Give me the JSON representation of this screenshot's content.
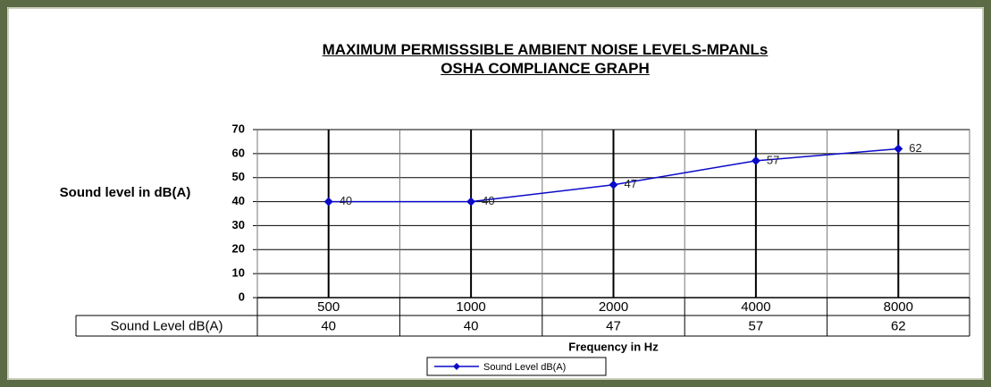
{
  "chart_data": {
    "type": "line",
    "title": "MAXIMUM PERMISSSIBLE AMBIENT NOISE LEVELS-MPANLs",
    "subtitle": "OSHA COMPLIANCE GRAPH",
    "x_label": "Frequency in Hz",
    "y_label": "Sound level in dB(A)",
    "categories": [
      "500",
      "1000",
      "2000",
      "4000",
      "8000"
    ],
    "series": [
      {
        "name": "Sound Level dB(A)",
        "color": "#0a0ac8",
        "values": [
          40,
          40,
          47,
          57,
          62
        ]
      }
    ],
    "ylim": [
      0,
      70
    ],
    "yticks": [
      0,
      10,
      20,
      30,
      40,
      50,
      60,
      70
    ],
    "grid": true,
    "data_labels": true,
    "data_table": true,
    "legend": "bottom"
  }
}
